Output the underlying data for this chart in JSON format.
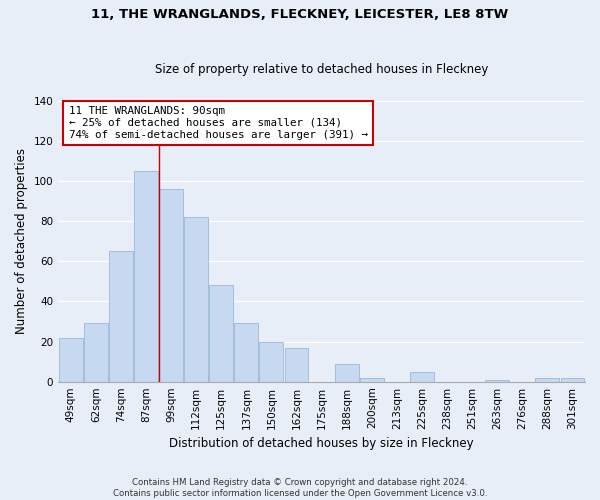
{
  "title": "11, THE WRANGLANDS, FLECKNEY, LEICESTER, LE8 8TW",
  "subtitle": "Size of property relative to detached houses in Fleckney",
  "xlabel": "Distribution of detached houses by size in Fleckney",
  "ylabel": "Number of detached properties",
  "bar_labels": [
    "49sqm",
    "62sqm",
    "74sqm",
    "87sqm",
    "99sqm",
    "112sqm",
    "125sqm",
    "137sqm",
    "150sqm",
    "162sqm",
    "175sqm",
    "188sqm",
    "200sqm",
    "213sqm",
    "225sqm",
    "238sqm",
    "251sqm",
    "263sqm",
    "276sqm",
    "288sqm",
    "301sqm"
  ],
  "bar_values": [
    22,
    29,
    65,
    105,
    96,
    82,
    48,
    29,
    20,
    17,
    0,
    9,
    2,
    0,
    5,
    0,
    0,
    1,
    0,
    2,
    2
  ],
  "bar_color": "#c6d9f0",
  "bar_edge_color": "#9ab8d8",
  "ylim": [
    0,
    140
  ],
  "yticks": [
    0,
    20,
    40,
    60,
    80,
    100,
    120,
    140
  ],
  "annotation_line1": "11 THE WRANGLANDS: 90sqm",
  "annotation_line2": "← 25% of detached houses are smaller (134)",
  "annotation_line3": "74% of semi-detached houses are larger (391) →",
  "annotation_box_color": "#ffffff",
  "annotation_box_edge": "#cc0000",
  "vertical_line_color": "#cc0000",
  "footer_line1": "Contains HM Land Registry data © Crown copyright and database right 2024.",
  "footer_line2": "Contains public sector information licensed under the Open Government Licence v3.0.",
  "background_color": "#e8eef8",
  "plot_bg_color": "#e8eef8",
  "grid_color": "#ffffff",
  "title_fontsize": 9.5,
  "subtitle_fontsize": 8.5,
  "axis_label_fontsize": 8.5,
  "tick_fontsize": 7.5
}
